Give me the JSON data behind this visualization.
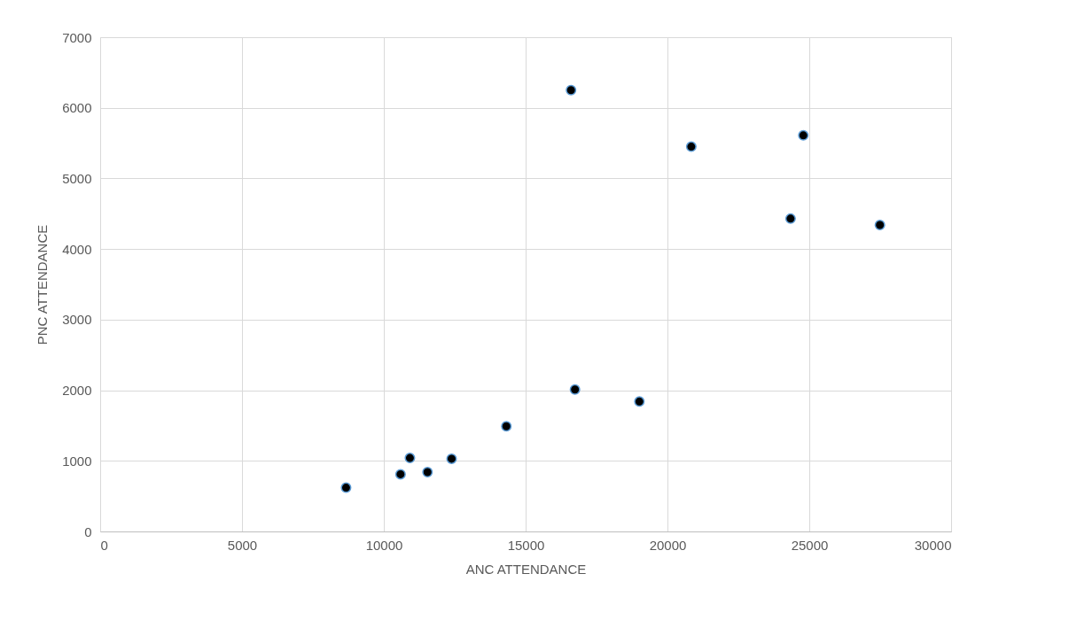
{
  "chart_data": {
    "type": "scatter",
    "xlabel": "ANC ATTENDANCE",
    "ylabel": "PNC ATTENDANCE",
    "x": [
      8670,
      10590,
      10920,
      11540,
      12390,
      14320,
      16740,
      19010,
      16600,
      20840,
      24790,
      24340,
      27490
    ],
    "series": [
      {
        "color": "#000000",
        "values": [
          620,
          810,
          1040,
          840,
          1030,
          1490,
          2010,
          1840,
          6250,
          5450,
          5610,
          4430,
          4340
        ]
      }
    ],
    "xlim": [
      0,
      30000
    ],
    "xticks": [
      0,
      5000,
      10000,
      15000,
      20000,
      25000,
      30000
    ],
    "ylim": [
      0,
      7000
    ],
    "yticks": [
      0,
      1000,
      2000,
      3000,
      4000,
      5000,
      6000,
      7000
    ],
    "grid": true,
    "marker": "circle"
  }
}
